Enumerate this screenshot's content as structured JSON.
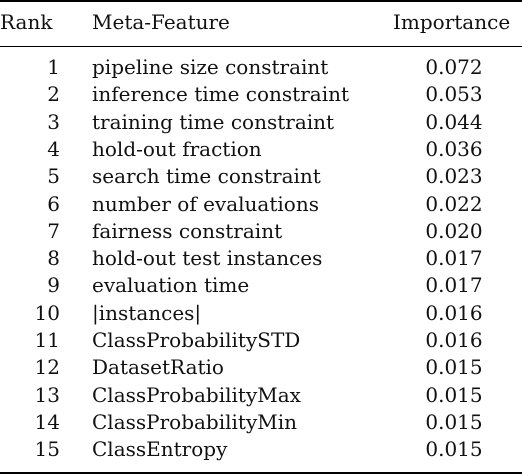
{
  "table": {
    "headers": {
      "rank": "Rank",
      "feature": "Meta-Feature",
      "importance": "Importance"
    },
    "rows": [
      {
        "rank": "1",
        "feature": "pipeline size constraint",
        "importance": "0.072"
      },
      {
        "rank": "2",
        "feature": "inference time constraint",
        "importance": "0.053"
      },
      {
        "rank": "3",
        "feature": "training time constraint",
        "importance": "0.044"
      },
      {
        "rank": "4",
        "feature": "hold-out fraction",
        "importance": "0.036"
      },
      {
        "rank": "5",
        "feature": "search time constraint",
        "importance": "0.023"
      },
      {
        "rank": "6",
        "feature": "number of evaluations",
        "importance": "0.022"
      },
      {
        "rank": "7",
        "feature": "fairness constraint",
        "importance": "0.020"
      },
      {
        "rank": "8",
        "feature": "hold-out test instances",
        "importance": "0.017"
      },
      {
        "rank": "9",
        "feature": "evaluation time",
        "importance": "0.017"
      },
      {
        "rank": "10",
        "feature": "|instances|",
        "importance": "0.016"
      },
      {
        "rank": "11",
        "feature": "ClassProbabilitySTD",
        "importance": "0.016"
      },
      {
        "rank": "12",
        "feature": "DatasetRatio",
        "importance": "0.015"
      },
      {
        "rank": "13",
        "feature": "ClassProbabilityMax",
        "importance": "0.015"
      },
      {
        "rank": "14",
        "feature": "ClassProbabilityMin",
        "importance": "0.015"
      },
      {
        "rank": "15",
        "feature": "ClassEntropy",
        "importance": "0.015"
      }
    ]
  }
}
